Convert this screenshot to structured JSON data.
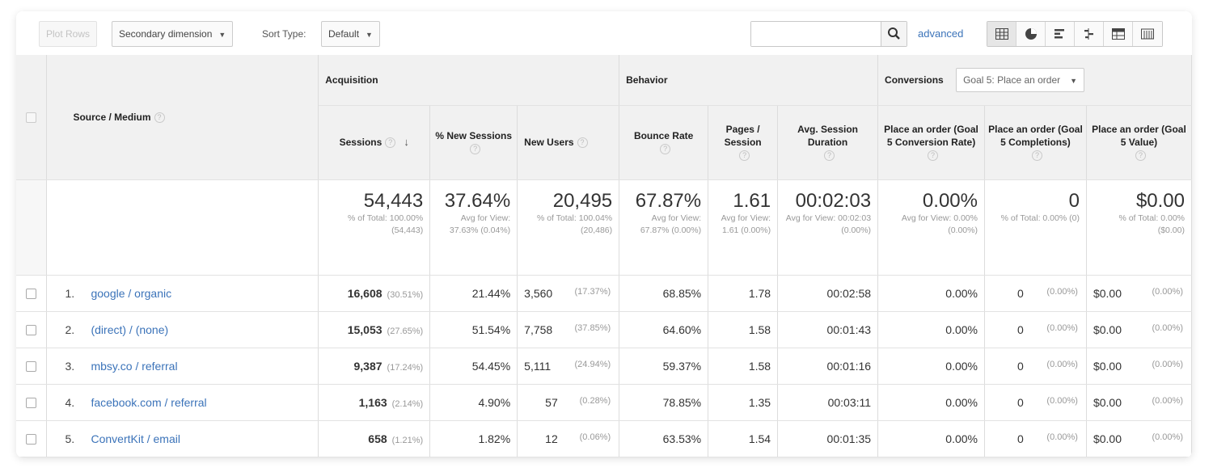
{
  "toolbar": {
    "plot_rows": "Plot Rows",
    "secondary_dimension": "Secondary dimension",
    "sort_type_label": "Sort Type:",
    "sort_type_value": "Default",
    "search_value": "",
    "advanced": "advanced",
    "view_icons": [
      "table-view-icon",
      "pie-view-icon",
      "bar-view-icon",
      "comparison-view-icon",
      "pivot-view-icon",
      "term-cloud-icon"
    ]
  },
  "table": {
    "dimension_header": "Source / Medium",
    "groups": {
      "acquisition": "Acquisition",
      "behavior": "Behavior",
      "conversions": "Conversions",
      "goal_select": "Goal 5: Place an order"
    },
    "columns": {
      "sessions": "Sessions",
      "pct_new_sessions": "% New Sessions",
      "new_users": "New Users",
      "bounce_rate": "Bounce Rate",
      "pages_session": "Pages / Session",
      "avg_session_duration": "Avg. Session Duration",
      "conv_rate": "Place an order (Goal 5 Conversion Rate)",
      "completions": "Place an order (Goal 5 Completions)",
      "value": "Place an order (Goal 5 Value)"
    },
    "totals": {
      "sessions": {
        "value": "54,443",
        "sub": "% of Total: 100.00% (54,443)"
      },
      "pct_new_sessions": {
        "value": "37.64%",
        "sub": "Avg for View: 37.63% (0.04%)"
      },
      "new_users": {
        "value": "20,495",
        "sub": "% of Total: 100.04% (20,486)"
      },
      "bounce_rate": {
        "value": "67.87%",
        "sub": "Avg for View: 67.87% (0.00%)"
      },
      "pages_session": {
        "value": "1.61",
        "sub": "Avg for View: 1.61 (0.00%)"
      },
      "avg_session_duration": {
        "value": "00:02:03",
        "sub": "Avg for View: 00:02:03 (0.00%)"
      },
      "conv_rate": {
        "value": "0.00%",
        "sub": "Avg for View: 0.00% (0.00%)"
      },
      "completions": {
        "value": "0",
        "sub": "% of Total: 0.00% (0)"
      },
      "value": {
        "value": "$0.00",
        "sub": "% of Total: 0.00% ($0.00)"
      }
    },
    "rows": [
      {
        "index": "1.",
        "source": "google / organic",
        "sessions": "16,608",
        "sessions_pct": "(30.51%)",
        "pct_new": "21.44%",
        "new_users": "3,560",
        "new_users_pct": "(17.37%)",
        "bounce": "68.85%",
        "pages": "1.78",
        "duration": "00:02:58",
        "conv_rate": "0.00%",
        "completions": "0",
        "completions_pct": "(0.00%)",
        "value": "$0.00",
        "value_pct": "(0.00%)"
      },
      {
        "index": "2.",
        "source": "(direct) / (none)",
        "sessions": "15,053",
        "sessions_pct": "(27.65%)",
        "pct_new": "51.54%",
        "new_users": "7,758",
        "new_users_pct": "(37.85%)",
        "bounce": "64.60%",
        "pages": "1.58",
        "duration": "00:01:43",
        "conv_rate": "0.00%",
        "completions": "0",
        "completions_pct": "(0.00%)",
        "value": "$0.00",
        "value_pct": "(0.00%)"
      },
      {
        "index": "3.",
        "source": "mbsy.co / referral",
        "sessions": "9,387",
        "sessions_pct": "(17.24%)",
        "pct_new": "54.45%",
        "new_users": "5,111",
        "new_users_pct": "(24.94%)",
        "bounce": "59.37%",
        "pages": "1.58",
        "duration": "00:01:16",
        "conv_rate": "0.00%",
        "completions": "0",
        "completions_pct": "(0.00%)",
        "value": "$0.00",
        "value_pct": "(0.00%)"
      },
      {
        "index": "4.",
        "source": "facebook.com / referral",
        "sessions": "1,163",
        "sessions_pct": "(2.14%)",
        "pct_new": "4.90%",
        "new_users": "57",
        "new_users_pct": "(0.28%)",
        "bounce": "78.85%",
        "pages": "1.35",
        "duration": "00:03:11",
        "conv_rate": "0.00%",
        "completions": "0",
        "completions_pct": "(0.00%)",
        "value": "$0.00",
        "value_pct": "(0.00%)"
      },
      {
        "index": "5.",
        "source": "ConvertKit / email",
        "sessions": "658",
        "sessions_pct": "(1.21%)",
        "pct_new": "1.82%",
        "new_users": "12",
        "new_users_pct": "(0.06%)",
        "bounce": "63.53%",
        "pages": "1.54",
        "duration": "00:01:35",
        "conv_rate": "0.00%",
        "completions": "0",
        "completions_pct": "(0.00%)",
        "value": "$0.00",
        "value_pct": "(0.00%)"
      }
    ]
  }
}
